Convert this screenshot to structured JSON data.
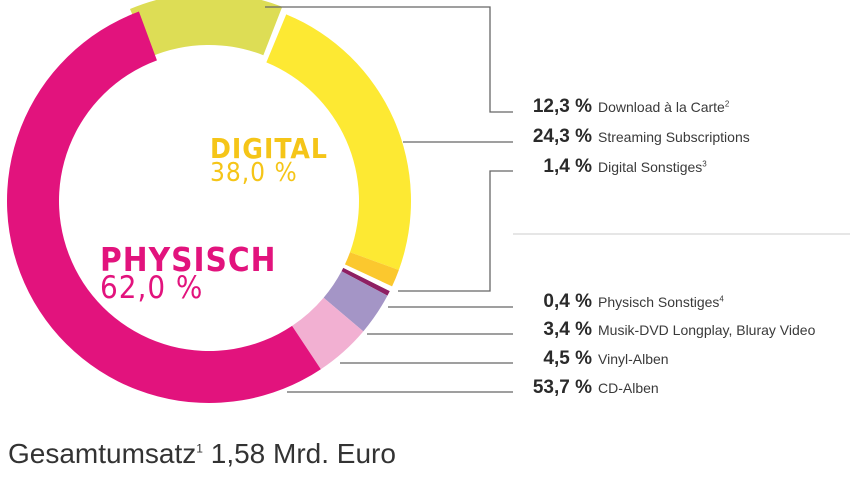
{
  "chart_data": {
    "type": "pie",
    "variant": "donut",
    "title": "",
    "groups": [
      {
        "name": "DIGITAL",
        "value": 38.0,
        "label": "DIGITAL",
        "value_label": "38,0 %",
        "color": "#F5C518"
      },
      {
        "name": "PHYSISCH",
        "value": 62.0,
        "label": "PHYSISCH",
        "value_label": "62,0 %",
        "color": "#E2137D"
      }
    ],
    "slices": [
      {
        "name": "Download à la Carte",
        "footnote": "2",
        "value": 12.3,
        "value_label": "12,3 %",
        "group": "DIGITAL",
        "color": "#DDDD55"
      },
      {
        "name": "Streaming Subscriptions",
        "footnote": "",
        "value": 24.3,
        "value_label": "24,3 %",
        "group": "DIGITAL",
        "color": "#FDE933"
      },
      {
        "name": "Digital Sonstiges",
        "footnote": "3",
        "value": 1.4,
        "value_label": "1,4 %",
        "group": "DIGITAL",
        "color": "#FBC82E"
      },
      {
        "name": "Physisch Sonstiges",
        "footnote": "4",
        "value": 0.4,
        "value_label": "0,4 %",
        "group": "PHYSISCH",
        "color": "#8E1F63"
      },
      {
        "name": "Musik-DVD Longplay, Bluray Video",
        "footnote": "",
        "value": 3.4,
        "value_label": "3,4 %",
        "group": "PHYSISCH",
        "color": "#A495C6"
      },
      {
        "name": "Vinyl-Alben",
        "footnote": "",
        "value": 4.5,
        "value_label": "4,5 %",
        "group": "PHYSISCH",
        "color": "#F2B0D2"
      },
      {
        "name": "CD-Alben",
        "footnote": "",
        "value": 53.7,
        "value_label": "53,7 %",
        "group": "PHYSISCH",
        "color": "#E2137D"
      }
    ],
    "total": {
      "label": "Gesamtumsatz",
      "footnote": "1",
      "value": "1,58 Mrd. Euro"
    },
    "legend_position": "right"
  },
  "labels": {
    "digital_title": "DIGITAL",
    "digital_value": "38,0 %",
    "physisch_title": "PHYSISCH",
    "physisch_value": "62,0 %",
    "total_label": "Gesamtumsatz",
    "total_footnote": "1",
    "total_value": "1,58 Mrd. Euro"
  },
  "legend": [
    {
      "pct": "12,3 %",
      "label": "Download à la Carte",
      "sup": "2"
    },
    {
      "pct": "24,3 %",
      "label": "Streaming Subscriptions",
      "sup": ""
    },
    {
      "pct": "1,4 %",
      "label": "Digital Sonstiges",
      "sup": "3"
    },
    {
      "pct": "0,4 %",
      "label": "Physisch Sonstiges",
      "sup": "4"
    },
    {
      "pct": "3,4 %",
      "label": "Musik-DVD Longplay, Bluray Video",
      "sup": ""
    },
    {
      "pct": "4,5 %",
      "label": "Vinyl-Alben",
      "sup": ""
    },
    {
      "pct": "53,7 %",
      "label": "CD-Alben",
      "sup": ""
    }
  ],
  "colors": {
    "digital_text": "#F5C518",
    "physisch_text": "#E2137D",
    "connector": "#666666",
    "divider": "#DDDDDD"
  }
}
